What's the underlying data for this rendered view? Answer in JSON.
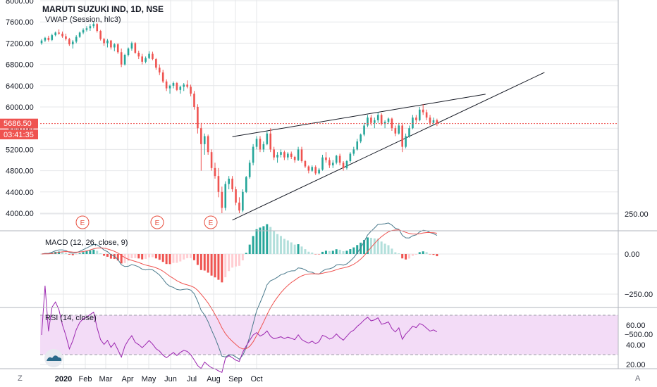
{
  "header": {
    "symbol": "MARUTI SUZUKI IND, 1D, NSE",
    "indicator": "VWAP (Session, hlc3)"
  },
  "price_tag": {
    "price": "5686.50",
    "countdown": "03:41:35",
    "color": "#ef5350"
  },
  "colors": {
    "up": "#26a69a",
    "down": "#ef5350",
    "grid": "#e6e7ea",
    "border": "#b2b5be",
    "macd": "#4a7a8c",
    "signal": "#ef5350",
    "rsi": "#9c27b0",
    "rsi_band": "#f3dcf7",
    "trendline": "#131722"
  },
  "x_axis": {
    "labels": [
      "2020",
      "Feb",
      "Mar",
      "Apr",
      "May",
      "Jun",
      "Jul",
      "Aug",
      "Sep",
      "Oct"
    ],
    "bottom_left": "Z",
    "bottom_right": "A"
  },
  "events": {
    "label": "E",
    "dates": [
      "2020-01-28",
      "2020-05-13",
      "2020-07-28"
    ]
  },
  "logo_icon": "tradingview-cloud-icon",
  "chart_data": [
    {
      "type": "candlestick",
      "title": "MARUTI SUZUKI IND, 1D, NSE",
      "y_ticks": [
        8000,
        7600,
        7200,
        6800,
        6400,
        6000,
        5600,
        5200,
        4800,
        4400,
        4000
      ],
      "ylim": [
        3800,
        8000
      ],
      "last_price": 5686.5,
      "dates_start": "2020-01-01",
      "ohlc": [
        [
          7200,
          7280,
          7170,
          7250
        ],
        [
          7250,
          7320,
          7220,
          7300
        ],
        [
          7300,
          7340,
          7230,
          7260
        ],
        [
          7260,
          7380,
          7240,
          7350
        ],
        [
          7350,
          7420,
          7330,
          7400
        ],
        [
          7400,
          7460,
          7360,
          7380
        ],
        [
          7380,
          7420,
          7300,
          7330
        ],
        [
          7330,
          7380,
          7250,
          7280
        ],
        [
          7280,
          7300,
          7150,
          7180
        ],
        [
          7180,
          7260,
          7100,
          7230
        ],
        [
          7230,
          7350,
          7200,
          7320
        ],
        [
          7320,
          7420,
          7300,
          7400
        ],
        [
          7400,
          7480,
          7370,
          7450
        ],
        [
          7450,
          7520,
          7420,
          7480
        ],
        [
          7480,
          7560,
          7430,
          7520
        ],
        [
          7520,
          7600,
          7480,
          7560
        ],
        [
          7560,
          7580,
          7400,
          7430
        ],
        [
          7430,
          7450,
          7250,
          7280
        ],
        [
          7280,
          7300,
          7150,
          7200
        ],
        [
          7200,
          7280,
          7120,
          7250
        ],
        [
          7250,
          7260,
          7080,
          7120
        ],
        [
          7120,
          7200,
          7050,
          7180
        ],
        [
          7180,
          7200,
          7000,
          7030
        ],
        [
          7030,
          7100,
          6750,
          6800
        ],
        [
          6800,
          7000,
          6780,
          6980
        ],
        [
          6980,
          7120,
          6950,
          7100
        ],
        [
          7100,
          7230,
          7060,
          7200
        ],
        [
          7200,
          7220,
          7000,
          7020
        ],
        [
          7020,
          7060,
          6900,
          6950
        ],
        [
          6950,
          7000,
          6800,
          6850
        ],
        [
          6850,
          6950,
          6820,
          6920
        ],
        [
          6920,
          7050,
          6900,
          7000
        ],
        [
          7000,
          7040,
          6880,
          6900
        ],
        [
          6900,
          6920,
          6700,
          6740
        ],
        [
          6740,
          6800,
          6600,
          6650
        ],
        [
          6650,
          6700,
          6450,
          6480
        ],
        [
          6480,
          6520,
          6300,
          6350
        ],
        [
          6350,
          6420,
          6250,
          6400
        ],
        [
          6400,
          6480,
          6350,
          6450
        ],
        [
          6450,
          6470,
          6300,
          6320
        ],
        [
          6320,
          6400,
          6250,
          6380
        ],
        [
          6380,
          6450,
          6300,
          6420
        ],
        [
          6420,
          6500,
          6350,
          6380
        ],
        [
          6380,
          6420,
          6200,
          6250
        ],
        [
          6250,
          6300,
          5950,
          6000
        ],
        [
          6000,
          6050,
          5500,
          5600
        ],
        [
          5600,
          5700,
          4800,
          5300
        ],
        [
          5300,
          5500,
          5100,
          5450
        ],
        [
          5450,
          5480,
          5100,
          5150
        ],
        [
          5150,
          5200,
          4800,
          4850
        ],
        [
          4850,
          4950,
          4650,
          4700
        ],
        [
          4700,
          4850,
          4300,
          4400
        ],
        [
          4400,
          4500,
          4000,
          4100
        ],
        [
          4100,
          4600,
          4050,
          4550
        ],
        [
          4550,
          4700,
          4450,
          4650
        ],
        [
          4650,
          4700,
          4400,
          4450
        ],
        [
          4450,
          4500,
          4150,
          4200
        ],
        [
          4200,
          4300,
          4000,
          4050
        ],
        [
          4050,
          4450,
          4020,
          4400
        ],
        [
          4400,
          4700,
          4380,
          4680
        ],
        [
          4680,
          5000,
          4650,
          4950
        ],
        [
          4950,
          5300,
          4900,
          5250
        ],
        [
          5250,
          5450,
          5200,
          5400
        ],
        [
          5400,
          5450,
          5150,
          5200
        ],
        [
          5200,
          5350,
          5150,
          5300
        ],
        [
          5300,
          5550,
          5280,
          5500
        ],
        [
          5500,
          5600,
          5150,
          5200
        ],
        [
          5200,
          5250,
          5000,
          5050
        ],
        [
          5050,
          5150,
          4950,
          5100
        ],
        [
          5100,
          5200,
          5050,
          5150
        ],
        [
          5150,
          5180,
          5000,
          5050
        ],
        [
          5050,
          5150,
          5000,
          5120
        ],
        [
          5120,
          5160,
          5020,
          5060
        ],
        [
          5060,
          5080,
          4950,
          5000
        ],
        [
          5000,
          5250,
          4980,
          5200
        ],
        [
          5200,
          5250,
          4950,
          4980
        ],
        [
          4980,
          5000,
          4850,
          4880
        ],
        [
          4880,
          4900,
          4750,
          4800
        ],
        [
          4800,
          4900,
          4780,
          4870
        ],
        [
          4870,
          4900,
          4720,
          4750
        ],
        [
          4750,
          4850,
          4730,
          4820
        ],
        [
          4820,
          5100,
          4800,
          5050
        ],
        [
          5050,
          5150,
          4950,
          5000
        ],
        [
          5000,
          5050,
          4850,
          4900
        ],
        [
          4900,
          5000,
          4850,
          4950
        ],
        [
          4950,
          5100,
          4920,
          5080
        ],
        [
          5080,
          5120,
          4900,
          4950
        ],
        [
          4950,
          4980,
          4800,
          4850
        ],
        [
          4850,
          5000,
          4820,
          4980
        ],
        [
          4980,
          5150,
          4950,
          5120
        ],
        [
          5120,
          5250,
          5080,
          5200
        ],
        [
          5200,
          5400,
          5180,
          5350
        ],
        [
          5350,
          5500,
          5320,
          5480
        ],
        [
          5480,
          5700,
          5450,
          5650
        ],
        [
          5650,
          5850,
          5620,
          5800
        ],
        [
          5800,
          5850,
          5650,
          5700
        ],
        [
          5700,
          5800,
          5600,
          5750
        ],
        [
          5750,
          5900,
          5700,
          5850
        ],
        [
          5850,
          5880,
          5650,
          5680
        ],
        [
          5680,
          5750,
          5600,
          5720
        ],
        [
          5720,
          5800,
          5680,
          5780
        ],
        [
          5780,
          5800,
          5550,
          5600
        ],
        [
          5600,
          5650,
          5450,
          5500
        ],
        [
          5500,
          5700,
          5480,
          5650
        ],
        [
          5650,
          5700,
          5150,
          5250
        ],
        [
          5250,
          5500,
          5220,
          5450
        ],
        [
          5450,
          5650,
          5420,
          5600
        ],
        [
          5600,
          5850,
          5580,
          5800
        ],
        [
          5800,
          5850,
          5700,
          5750
        ],
        [
          5750,
          6000,
          5730,
          5950
        ],
        [
          5950,
          6050,
          5850,
          5900
        ],
        [
          5900,
          5950,
          5750,
          5800
        ],
        [
          5800,
          5850,
          5650,
          5700
        ],
        [
          5700,
          5800,
          5650,
          5750
        ],
        [
          5750,
          5780,
          5640,
          5686.5
        ]
      ]
    },
    {
      "type": "bar+line",
      "title": "MACD (12, 26, close, 9)",
      "y_ticks": [
        250,
        0,
        -250,
        -500
      ],
      "ylim": [
        -650,
        320
      ],
      "series": [
        {
          "name": "MACD"
        },
        {
          "name": "Signal"
        },
        {
          "name": "Histogram"
        }
      ]
    },
    {
      "type": "line",
      "title": "RSI (14, close)",
      "y_ticks": [
        60,
        40,
        20
      ],
      "ylim": [
        15,
        77
      ],
      "band": [
        30,
        70
      ],
      "series": [
        {
          "name": "RSI"
        }
      ]
    }
  ]
}
